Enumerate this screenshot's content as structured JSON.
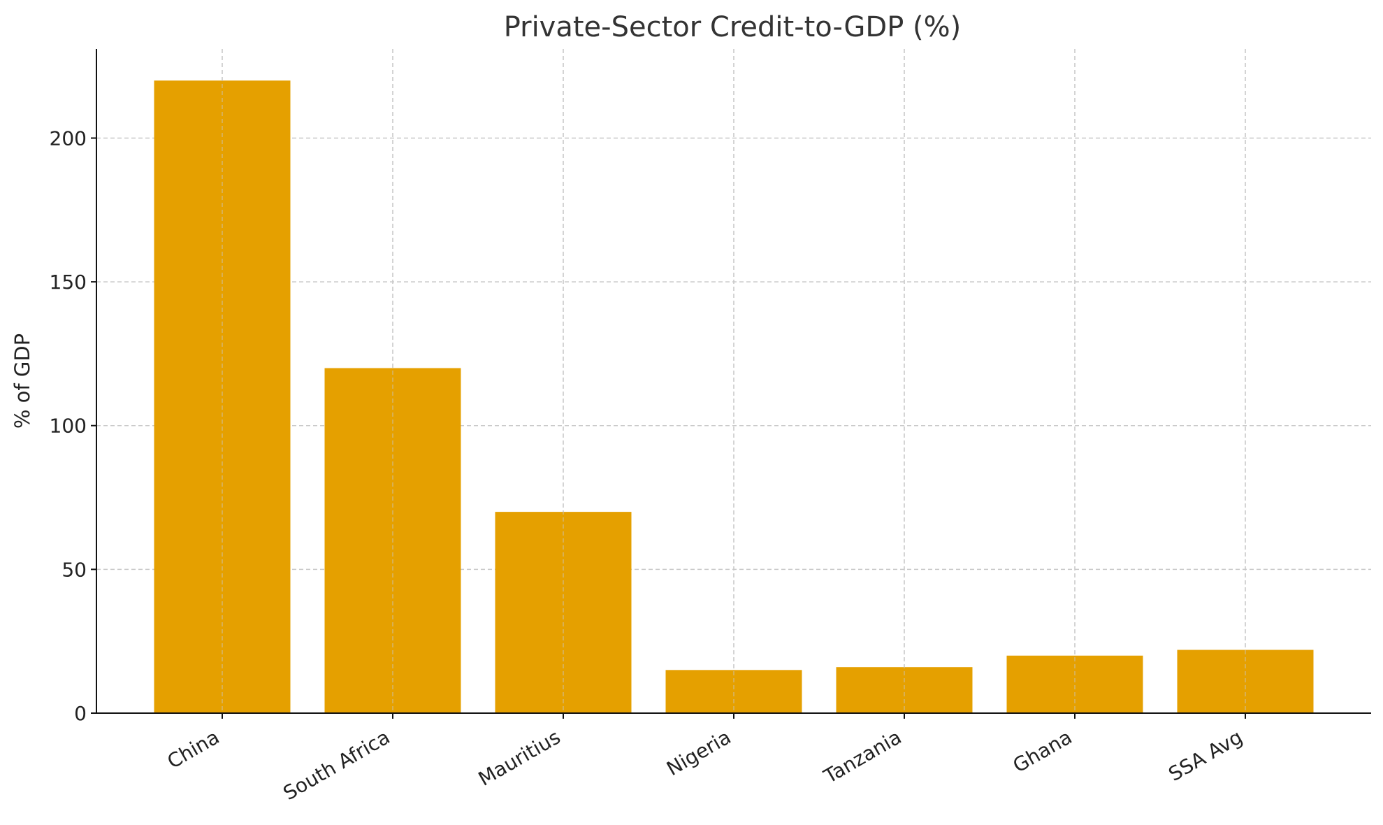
{
  "chart_data": {
    "type": "bar",
    "title": "Private-Sector Credit-to-GDP (%)",
    "xlabel": "",
    "ylabel": "% of GDP",
    "categories": [
      "China",
      "South Africa",
      "Mauritius",
      "Nigeria",
      "Tanzania",
      "Ghana",
      "SSA Avg"
    ],
    "values": [
      220,
      120,
      70,
      15,
      16,
      20,
      22
    ],
    "ylim": [
      0,
      231
    ],
    "yticks": [
      0,
      50,
      100,
      150,
      200
    ],
    "grid": true,
    "bar_color": "#E5A000",
    "xtick_rotation": 30
  }
}
